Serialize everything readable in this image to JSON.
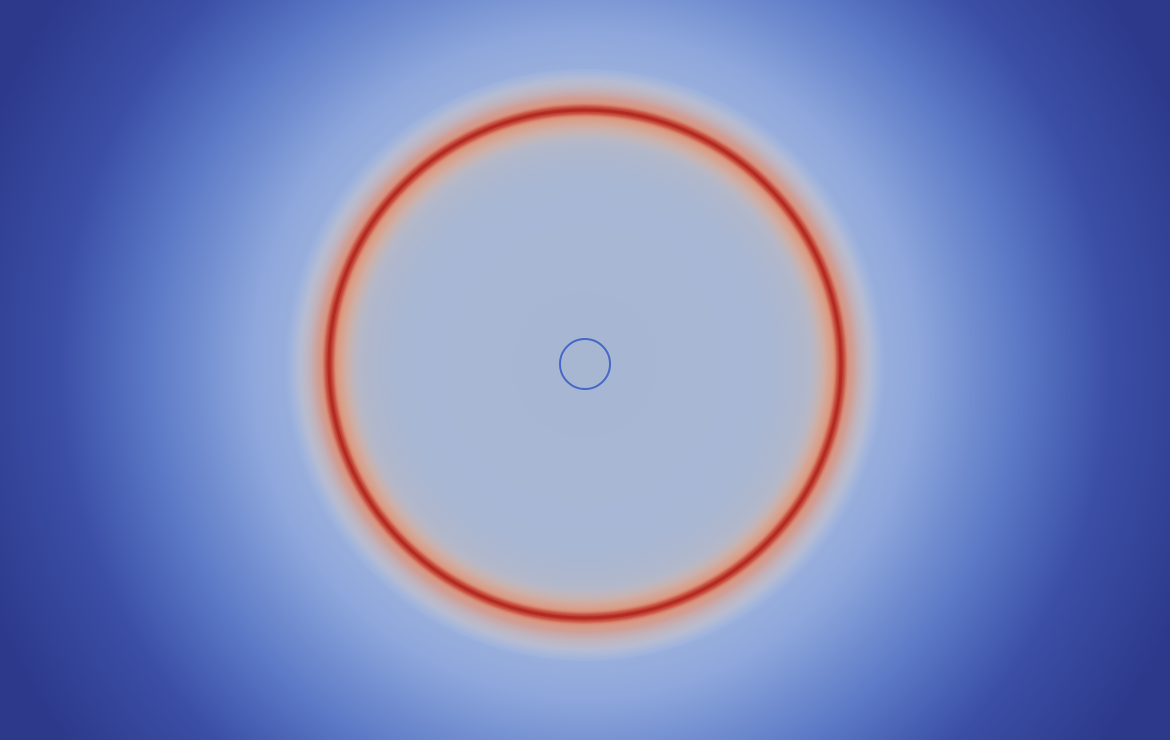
{
  "colors": {
    "background": "#2d3a8c",
    "outer_glow": "#9fb6e4",
    "inner_field": "#a7b7d2",
    "ring_peak": "#c23a2e",
    "ring_dark": "#b02a24",
    "ring_warm": "#e7a37e",
    "inner_ring": "#3b5fc4"
  },
  "colormap": "cool-to-warm",
  "shapes": [
    "outer-ring",
    "inner-ring"
  ]
}
